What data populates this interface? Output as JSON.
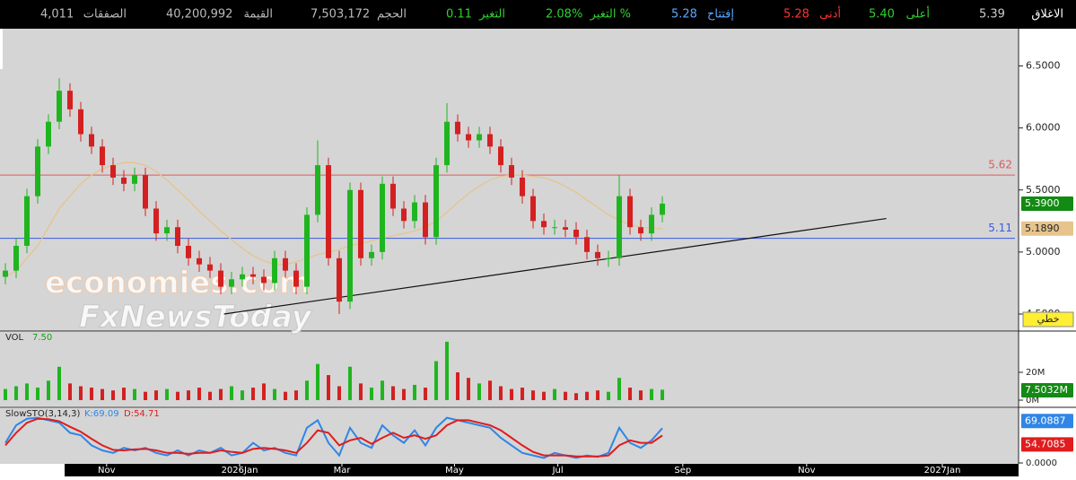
{
  "header": {
    "stats": [
      {
        "label": "الاغلاق",
        "value": "5.39"
      },
      {
        "label": "أعلى",
        "value": "5.40"
      },
      {
        "label": "أدنى",
        "value": "5.28"
      },
      {
        "label": "إفتتاح",
        "value": "5.28"
      },
      {
        "label": "التغير %",
        "value": "2.08%"
      },
      {
        "label": "التغير",
        "value": "0.11"
      },
      {
        "label": "الحجم",
        "value": "7,503,172"
      },
      {
        "label": "القيمة",
        "value": "40,200,992"
      },
      {
        "label": "الصفقات",
        "value": "4,011"
      }
    ]
  },
  "watermark": [
    "economies.com",
    "FxNewsToday"
  ],
  "chart_data": [
    {
      "type": "candlestick",
      "up_color": "#1fb51f",
      "down_color": "#d42020",
      "open": [
        4.8,
        4.85,
        5.05,
        5.45,
        5.85,
        6.05,
        6.3,
        6.15,
        5.95,
        5.85,
        5.7,
        5.6,
        5.55,
        5.62,
        5.35,
        5.15,
        5.2,
        5.05,
        4.95,
        4.9,
        4.85,
        4.72,
        4.78,
        4.82,
        4.8,
        4.75,
        4.95,
        4.85,
        4.72,
        5.3,
        5.7,
        4.95,
        4.6,
        5.5,
        4.95,
        5.0,
        5.55,
        5.35,
        5.25,
        5.4,
        5.12,
        5.7,
        6.05,
        5.95,
        5.9,
        5.95,
        5.85,
        5.7,
        5.6,
        5.45,
        5.25,
        5.2,
        5.2,
        5.18,
        5.12,
        5.0,
        4.95,
        4.95,
        5.45,
        5.2,
        5.15,
        5.3
      ],
      "high": [
        4.91,
        5.11,
        5.51,
        5.91,
        6.11,
        6.4,
        6.36,
        6.21,
        6.01,
        5.91,
        5.76,
        5.66,
        5.68,
        5.68,
        5.41,
        5.26,
        5.26,
        5.11,
        5.01,
        4.96,
        4.91,
        4.84,
        4.88,
        4.88,
        4.86,
        5.01,
        5.01,
        4.91,
        5.36,
        5.9,
        5.76,
        5.01,
        5.56,
        5.56,
        5.06,
        5.61,
        5.61,
        5.41,
        5.46,
        5.46,
        5.76,
        6.2,
        6.11,
        6.01,
        6.01,
        6.01,
        5.91,
        5.76,
        5.66,
        5.51,
        5.31,
        5.26,
        5.26,
        5.24,
        5.18,
        5.06,
        5.01,
        5.62,
        5.51,
        5.26,
        5.36,
        5.45
      ],
      "low": [
        4.74,
        4.79,
        4.99,
        5.39,
        5.79,
        5.99,
        6.09,
        5.89,
        5.79,
        5.64,
        5.54,
        5.49,
        5.49,
        5.29,
        5.09,
        5.09,
        4.99,
        4.89,
        4.84,
        4.79,
        4.66,
        4.66,
        4.72,
        4.74,
        4.69,
        4.69,
        4.79,
        4.66,
        4.66,
        5.24,
        4.89,
        4.5,
        4.54,
        4.89,
        4.89,
        4.94,
        5.29,
        5.19,
        5.19,
        5.06,
        5.06,
        5.64,
        5.89,
        5.84,
        5.84,
        5.79,
        5.64,
        5.54,
        5.39,
        5.19,
        5.14,
        5.14,
        5.12,
        5.06,
        4.94,
        4.89,
        4.88,
        4.89,
        5.14,
        5.09,
        5.09,
        5.24
      ],
      "close": [
        4.85,
        5.05,
        5.45,
        5.85,
        6.05,
        6.3,
        6.15,
        5.95,
        5.85,
        5.7,
        5.6,
        5.55,
        5.62,
        5.35,
        5.15,
        5.2,
        5.05,
        4.95,
        4.9,
        4.85,
        4.72,
        4.78,
        4.82,
        4.8,
        4.75,
        4.95,
        4.85,
        4.72,
        5.3,
        5.7,
        4.95,
        4.6,
        5.5,
        4.95,
        5.0,
        5.55,
        5.35,
        5.25,
        5.4,
        5.12,
        5.7,
        6.05,
        5.95,
        5.9,
        5.95,
        5.85,
        5.7,
        5.6,
        5.45,
        5.25,
        5.2,
        5.2,
        5.18,
        5.12,
        5.0,
        4.95,
        4.95,
        5.45,
        5.2,
        5.15,
        5.3,
        5.39
      ],
      "close_label": "5.3900",
      "close_color": "#138a13",
      "overlays": [
        {
          "color": "#e6c48c",
          "values": [
            4.8,
            4.85,
            4.95,
            5.05,
            5.2,
            5.35,
            5.45,
            5.55,
            5.62,
            5.67,
            5.7,
            5.72,
            5.72,
            5.7,
            5.65,
            5.58,
            5.5,
            5.42,
            5.33,
            5.25,
            5.17,
            5.1,
            5.03,
            4.97,
            4.93,
            4.9,
            4.9,
            4.92,
            4.95,
            4.98,
            5.0,
            5.02,
            5.05,
            5.07,
            5.09,
            5.11,
            5.13,
            5.15,
            5.17,
            5.2,
            5.25,
            5.32,
            5.4,
            5.47,
            5.53,
            5.58,
            5.61,
            5.62,
            5.62,
            5.61,
            5.6,
            5.57,
            5.53,
            5.48,
            5.42,
            5.36,
            5.3,
            5.26,
            5.22,
            5.2,
            5.19,
            5.189
          ],
          "last_label": "5.1890"
        }
      ],
      "hlines": [
        {
          "value": 5.62,
          "color": "#e05a5a"
        },
        {
          "value": 5.11,
          "color": "#3a5ae0"
        }
      ],
      "trendline": {
        "x": [
          20.3,
          81.8
        ],
        "y": [
          4.5,
          5.27
        ],
        "color": "#111111"
      },
      "xlim": [
        -0.5,
        94.08
      ],
      "ylim": [
        4.37,
        6.8
      ],
      "yticks": [
        {
          "value": 6.5,
          "label": "6.5000"
        },
        {
          "value": 6.0,
          "label": "6.0000"
        },
        {
          "value": 5.5,
          "label": "5.5000"
        },
        {
          "value": 5.0,
          "label": "5.0000"
        },
        {
          "value": 4.5,
          "label": "4.5000"
        }
      ],
      "xticks": [
        {
          "value": 9.4,
          "label": "Nov"
        },
        {
          "value": 21.75,
          "label": "2026Jan"
        },
        {
          "value": 31.25,
          "label": "Mar"
        },
        {
          "value": 41.7,
          "label": "May"
        },
        {
          "value": 51.3,
          "label": "Jul"
        },
        {
          "value": 62.9,
          "label": "Sep"
        },
        {
          "value": 74.4,
          "label": "Nov"
        },
        {
          "value": 87,
          "label": "2027Jan"
        }
      ],
      "scale_label": "خطي"
    },
    {
      "type": "bar",
      "title": "VOL",
      "legend_value": "7.50",
      "values": [
        8,
        10,
        12,
        9,
        14,
        24,
        12,
        10,
        9,
        8,
        7,
        9,
        8,
        6,
        7,
        8,
        6,
        7,
        9,
        6,
        8,
        10,
        7,
        9,
        12,
        8,
        6,
        7,
        14,
        26,
        18,
        10,
        24,
        12,
        9,
        14,
        10,
        8,
        11,
        9,
        28,
        42,
        20,
        16,
        12,
        14,
        10,
        8,
        9,
        7,
        6,
        8,
        6,
        5,
        6,
        7,
        6,
        16,
        9,
        7,
        8,
        7.5032
      ],
      "last_label": "7.5032M",
      "last_color": "#138a13",
      "ylim": [
        0,
        49
      ],
      "yticks": [
        {
          "value": 20,
          "label": "20M"
        },
        {
          "value": 0,
          "label": "0M"
        }
      ]
    },
    {
      "type": "line",
      "title": "SlowSTO(3,14,3)",
      "series": [
        {
          "color": "#2f86e6",
          "legend": "K:69.09",
          "last_label": "69.0887",
          "values": [
            40,
            75,
            88,
            90,
            85,
            80,
            60,
            55,
            35,
            25,
            20,
            30,
            25,
            30,
            20,
            15,
            25,
            15,
            25,
            20,
            30,
            15,
            20,
            40,
            25,
            30,
            20,
            15,
            70,
            85,
            40,
            15,
            70,
            40,
            30,
            75,
            55,
            40,
            65,
            35,
            70,
            90,
            85,
            80,
            75,
            70,
            50,
            35,
            20,
            15,
            10,
            20,
            15,
            10,
            15,
            12,
            20,
            70,
            40,
            30,
            45,
            69.0887
          ]
        },
        {
          "color": "#e01c1c",
          "legend": "D:54.71",
          "last_label": "54.7085",
          "values": [
            35,
            60,
            80,
            88,
            87,
            83,
            72,
            62,
            48,
            35,
            26,
            25,
            27,
            28,
            25,
            20,
            20,
            18,
            20,
            20,
            25,
            22,
            20,
            28,
            30,
            28,
            25,
            20,
            40,
            65,
            60,
            35,
            45,
            50,
            38,
            50,
            60,
            50,
            55,
            48,
            55,
            75,
            85,
            85,
            80,
            75,
            65,
            50,
            35,
            22,
            15,
            15,
            15,
            13,
            13,
            13,
            15,
            35,
            45,
            40,
            40,
            54.7085
          ]
        }
      ],
      "ylim": [
        0,
        100
      ],
      "yticks": [
        {
          "value": 0,
          "label": "0.0000"
        }
      ]
    }
  ]
}
